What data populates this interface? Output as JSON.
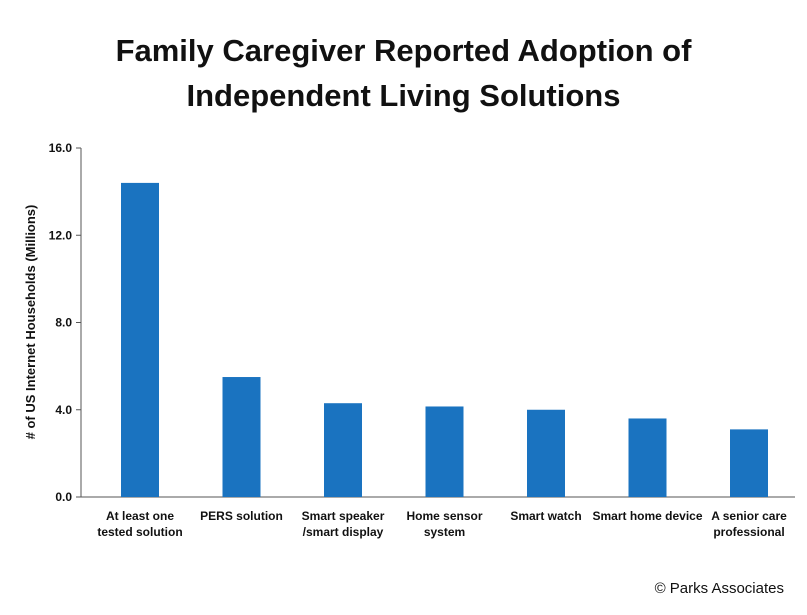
{
  "chart_data": {
    "type": "bar",
    "title_lines": [
      "Family Caregiver Reported Adoption of",
      "Independent Living Solutions"
    ],
    "ylabel": "# of US Internet Households (Millions)",
    "xlabel": "",
    "ylim": [
      0,
      16
    ],
    "yticks": [
      "0.0",
      "4.0",
      "8.0",
      "12.0",
      "16.0"
    ],
    "categories": [
      [
        "At least one",
        "tested solution"
      ],
      [
        "PERS solution"
      ],
      [
        "Smart speaker",
        "/smart display"
      ],
      [
        "Home sensor",
        "system"
      ],
      [
        "Smart watch"
      ],
      [
        "Smart home device"
      ],
      [
        "A senior care",
        "professional"
      ]
    ],
    "values": [
      14.4,
      5.5,
      4.3,
      4.15,
      4.0,
      3.6,
      3.1
    ],
    "bar_color": "#1a73c0",
    "grid": false,
    "legend": "none"
  },
  "footer": {
    "copyright": "© Parks Associates"
  }
}
